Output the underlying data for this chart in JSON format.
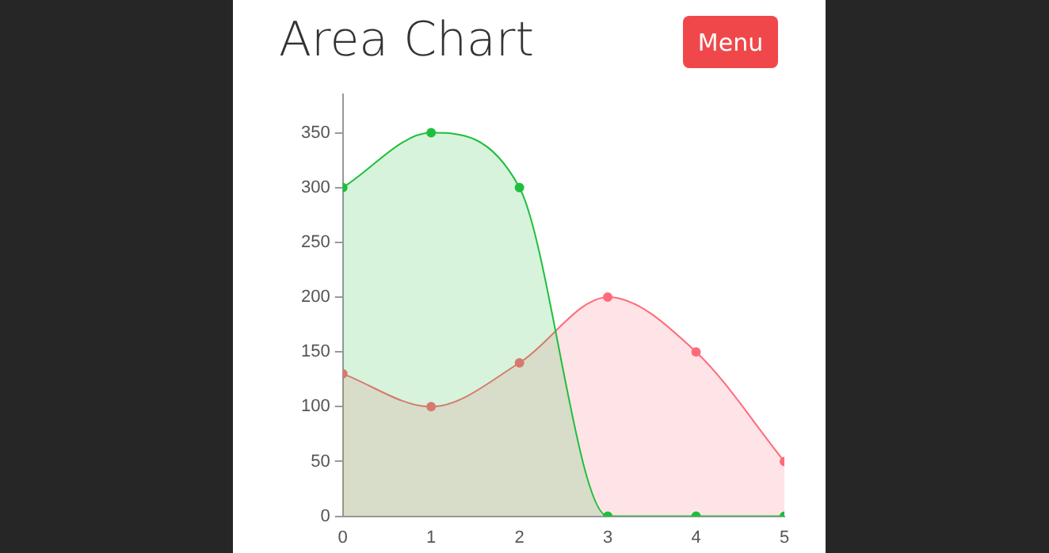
{
  "chart_data": {
    "type": "area",
    "title": "Area Chart",
    "annotations": [
      "Menu"
    ],
    "x": [
      0,
      1,
      2,
      3,
      4,
      5
    ],
    "series": [
      {
        "color": "#1fbf3c",
        "values": [
          300,
          350,
          300,
          0,
          0,
          0
        ]
      },
      {
        "color": "#ff6b7a",
        "values": [
          130,
          100,
          140,
          200,
          150,
          50
        ]
      }
    ],
    "xlim": [
      0,
      5
    ],
    "xticks": [
      0,
      1,
      2,
      3,
      4,
      5
    ],
    "ylim": [
      0,
      385
    ],
    "yticks": [
      0,
      50,
      100,
      150,
      200,
      250,
      300,
      350
    ],
    "grid": false,
    "legend": false,
    "marker": "circle",
    "line_style": "solid"
  }
}
